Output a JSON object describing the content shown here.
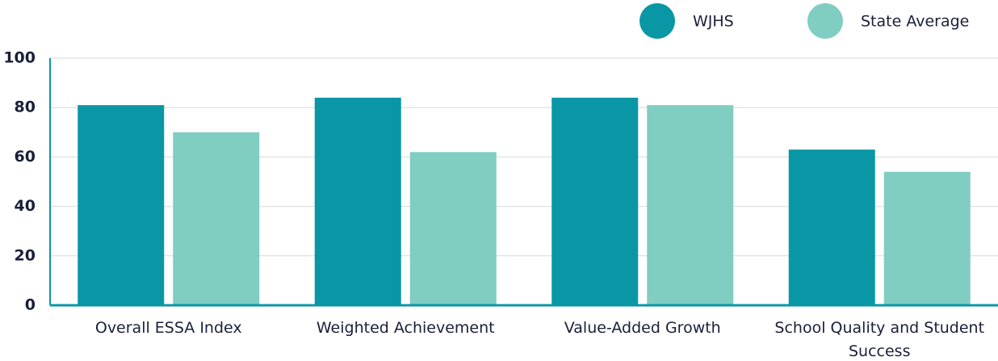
{
  "chart_data": {
    "type": "bar",
    "categories": [
      "Overall ESSA Index",
      "Weighted Achievement",
      "Value-Added Growth",
      "School Quality and Student Success"
    ],
    "series": [
      {
        "name": "WJHS",
        "color": "#0a97a5",
        "values": [
          81,
          84,
          84,
          63
        ]
      },
      {
        "name": "State Average",
        "color": "#80cdc2",
        "values": [
          70,
          62,
          81,
          54
        ]
      }
    ],
    "ylim": [
      0,
      100
    ],
    "yticks": [
      0,
      20,
      40,
      60,
      80,
      100
    ],
    "grid": true,
    "legend": "top-right"
  }
}
